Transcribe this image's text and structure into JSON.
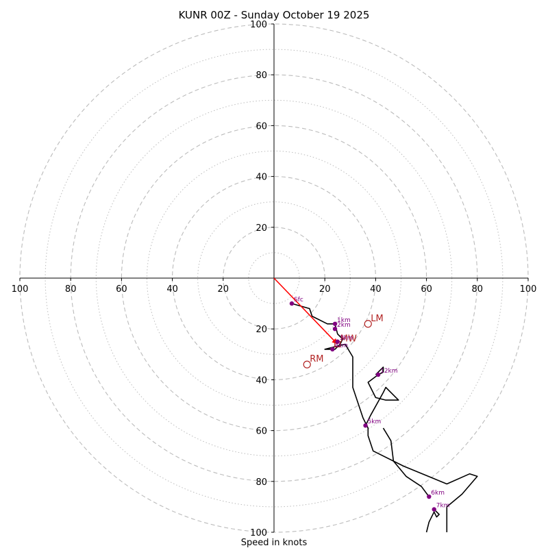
{
  "chart_data": {
    "type": "hodograph",
    "title": "KUNR 00Z - Sunday October 19 2025",
    "xlabel": "Speed in knots",
    "ylabel": "",
    "xlim": [
      -100,
      100
    ],
    "ylim": [
      -100,
      100
    ],
    "ring_interval_major": 20,
    "ring_interval_minor": 10,
    "rings_major": [
      20,
      40,
      60,
      80,
      100
    ],
    "rings_minor": [
      10,
      30,
      50,
      70,
      90
    ],
    "x_tick_labels": [
      "100",
      "80",
      "60",
      "40",
      "20",
      "20",
      "40",
      "60",
      "80",
      "100"
    ],
    "y_tick_labels": [
      "100",
      "80",
      "60",
      "40",
      "20",
      "20",
      "40",
      "60",
      "80",
      "100"
    ],
    "colors": {
      "trace": "#000000",
      "height_marker": "#800080",
      "motion": "#b22222",
      "shear_vector": "#ff0000",
      "ring": "#bbbbbb",
      "axis": "#000000"
    },
    "trace": [
      [
        7,
        -10
      ],
      [
        14,
        -12
      ],
      [
        15,
        -15
      ],
      [
        21,
        -18
      ],
      [
        24,
        -18
      ],
      [
        25,
        -22
      ],
      [
        27,
        -24
      ],
      [
        26,
        -26
      ],
      [
        24,
        -28
      ],
      [
        22,
        -28
      ],
      [
        20,
        -28
      ],
      [
        24,
        -27
      ],
      [
        28,
        -26
      ],
      [
        31,
        -31
      ],
      [
        31,
        -43
      ],
      [
        35,
        -55
      ],
      [
        37,
        -59
      ],
      [
        37,
        -62
      ],
      [
        39,
        -68
      ],
      [
        51,
        -74
      ],
      [
        68,
        -81
      ],
      [
        77,
        -77
      ],
      [
        80,
        -78
      ],
      [
        74,
        -85
      ],
      [
        68,
        -90
      ],
      [
        68,
        -100
      ]
    ],
    "trace_branch": [
      [
        36,
        -58
      ],
      [
        38,
        -54
      ],
      [
        43,
        -45
      ],
      [
        44,
        -43
      ],
      [
        48,
        -47
      ],
      [
        49,
        -48
      ],
      [
        44,
        -48
      ],
      [
        40,
        -47
      ],
      [
        37,
        -41
      ],
      [
        41,
        -38
      ],
      [
        43,
        -37
      ],
      [
        43,
        -35
      ],
      [
        41,
        -37
      ],
      [
        40,
        -38
      ]
    ],
    "trace_branch_2": [
      [
        61,
        -86
      ],
      [
        58,
        -82
      ],
      [
        55,
        -80
      ],
      [
        52,
        -78
      ],
      [
        47,
        -72
      ],
      [
        46,
        -64
      ],
      [
        43,
        -59
      ]
    ],
    "trace_branch_3": [
      [
        63,
        -91
      ],
      [
        65,
        -93
      ],
      [
        64,
        -94
      ],
      [
        63,
        -92
      ],
      [
        61,
        -96
      ],
      [
        60,
        -100
      ]
    ],
    "height_markers": [
      {
        "label": "Sfc",
        "u": 7,
        "v": -10
      },
      {
        "label": "1km",
        "u": 24,
        "v": -18
      },
      {
        "label": "2km",
        "u": 24,
        "v": -20
      },
      {
        "label": "3km",
        "u": 25,
        "v": -25
      },
      {
        "label": "4km",
        "u": 23,
        "v": -28
      },
      {
        "label": "5km",
        "u": 36,
        "v": -58
      },
      {
        "label": "6km",
        "u": 61,
        "v": -86
      },
      {
        "label": "7km",
        "u": 63,
        "v": -91
      },
      {
        "label": "12km",
        "u": 41,
        "v": -38
      }
    ],
    "storm_motions": [
      {
        "label": "LM",
        "u": 37,
        "v": -18
      },
      {
        "label": "RM",
        "u": 13,
        "v": -34
      },
      {
        "label": "MW",
        "u": 25,
        "v": -26
      }
    ],
    "shear_vector": {
      "from": [
        0,
        0
      ],
      "to": [
        25,
        -26
      ]
    }
  }
}
